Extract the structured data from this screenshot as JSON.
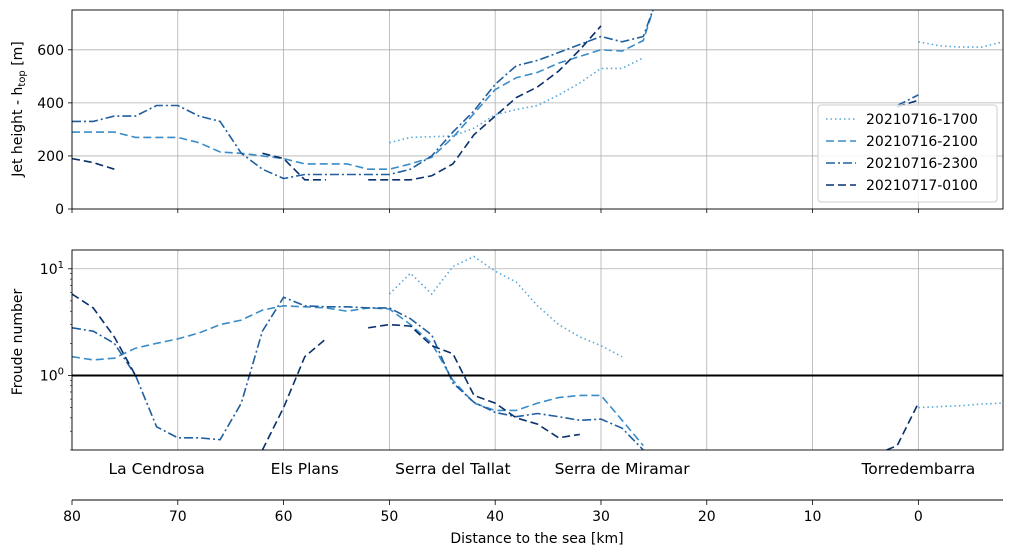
{
  "chart_data": [
    {
      "type": "line",
      "panel": "top",
      "ylabel_main": "Jet height - h",
      "ylabel_sub": "top",
      "ylabel_unit": " [m]",
      "xlim": [
        80,
        -8
      ],
      "ylim": [
        0,
        750
      ],
      "yticks": [
        0,
        200,
        400,
        600
      ],
      "grid": true,
      "legend_position": "right",
      "series": [
        {
          "name": "20210716-1700",
          "style": "dotted",
          "color": "#5aa8d8",
          "segments": [
            [
              [
                50,
                250
              ],
              [
                48,
                270
              ],
              [
                44,
                275
              ],
              [
                42,
                305
              ],
              [
                40,
                355
              ],
              [
                38,
                375
              ],
              [
                36,
                390
              ],
              [
                34,
                430
              ],
              [
                32,
                475
              ],
              [
                30,
                530
              ],
              [
                28,
                530
              ],
              [
                26,
                570
              ]
            ],
            [
              [
                0,
                630
              ],
              [
                -2,
                615
              ],
              [
                -4,
                610
              ],
              [
                -6,
                610
              ],
              [
                -8,
                630
              ]
            ]
          ]
        },
        {
          "name": "20210716-2100",
          "style": "dashed",
          "color": "#3a8cc8",
          "segments": [
            [
              [
                80,
                290
              ],
              [
                78,
                290
              ],
              [
                76,
                290
              ],
              [
                74,
                270
              ],
              [
                72,
                270
              ],
              [
                70,
                270
              ],
              [
                68,
                250
              ],
              [
                66,
                215
              ],
              [
                64,
                210
              ],
              [
                62,
                200
              ],
              [
                60,
                190
              ],
              [
                58,
                170
              ],
              [
                56,
                170
              ],
              [
                54,
                170
              ],
              [
                52,
                150
              ],
              [
                50,
                150
              ],
              [
                48,
                170
              ],
              [
                46,
                195
              ],
              [
                44,
                270
              ],
              [
                42,
                360
              ],
              [
                40,
                450
              ],
              [
                38,
                495
              ],
              [
                36,
                515
              ],
              [
                34,
                550
              ],
              [
                32,
                575
              ],
              [
                30,
                600
              ],
              [
                28,
                595
              ],
              [
                26,
                635
              ],
              [
                25,
                760
              ]
            ]
          ]
        },
        {
          "name": "20210716-2300",
          "style": "dashdot",
          "color": "#1f5f9f",
          "segments": [
            [
              [
                80,
                330
              ],
              [
                78,
                330
              ],
              [
                76,
                350
              ],
              [
                74,
                350
              ],
              [
                72,
                390
              ],
              [
                70,
                390
              ],
              [
                68,
                350
              ],
              [
                66,
                330
              ],
              [
                64,
                210
              ],
              [
                62,
                150
              ],
              [
                60,
                115
              ],
              [
                58,
                130
              ],
              [
                56,
                130
              ],
              [
                54,
                130
              ],
              [
                52,
                130
              ],
              [
                50,
                130
              ],
              [
                48,
                150
              ],
              [
                46,
                200
              ],
              [
                44,
                290
              ],
              [
                42,
                370
              ],
              [
                40,
                470
              ],
              [
                38,
                540
              ],
              [
                36,
                560
              ],
              [
                34,
                590
              ],
              [
                32,
                620
              ],
              [
                30,
                650
              ],
              [
                28,
                630
              ],
              [
                26,
                650
              ],
              [
                25,
                760
              ]
            ],
            [
              [
                2,
                390
              ],
              [
                0,
                430
              ]
            ]
          ]
        },
        {
          "name": "20210717-0100",
          "style": "dashed",
          "color": "#08306b",
          "segments": [
            [
              [
                80,
                190
              ],
              [
                78,
                175
              ],
              [
                76,
                150
              ]
            ],
            [
              [
                62,
                210
              ],
              [
                60,
                190
              ],
              [
                58,
                110
              ],
              [
                56,
                110
              ]
            ],
            [
              [
                52,
                110
              ],
              [
                50,
                110
              ],
              [
                48,
                110
              ],
              [
                46,
                125
              ],
              [
                44,
                170
              ],
              [
                42,
                280
              ],
              [
                40,
                350
              ],
              [
                38,
                420
              ],
              [
                36,
                460
              ],
              [
                34,
                520
              ],
              [
                32,
                600
              ],
              [
                30,
                690
              ]
            ],
            [
              [
                2,
                385
              ],
              [
                0,
                410
              ]
            ]
          ]
        }
      ]
    },
    {
      "type": "line",
      "panel": "bottom",
      "ylabel": "Froude number",
      "yscale": "log",
      "xlim": [
        80,
        -8
      ],
      "ylim": [
        0.2,
        15
      ],
      "reference_line": 1,
      "grid": true,
      "series": [
        {
          "name": "20210716-1700",
          "style": "dotted",
          "color": "#5aa8d8",
          "segments": [
            [
              [
                50,
                5.8
              ],
              [
                48,
                9.1
              ],
              [
                46,
                5.8
              ],
              [
                44,
                10.5
              ],
              [
                42,
                13.0
              ],
              [
                40,
                9.5
              ],
              [
                38,
                7.5
              ],
              [
                36,
                4.5
              ],
              [
                34,
                3.0
              ],
              [
                32,
                2.3
              ],
              [
                30,
                1.9
              ],
              [
                28,
                1.5
              ]
            ],
            [
              [
                0,
                0.5
              ],
              [
                -2,
                0.51
              ],
              [
                -4,
                0.52
              ],
              [
                -6,
                0.54
              ],
              [
                -8,
                0.55
              ]
            ]
          ]
        },
        {
          "name": "20210716-2100",
          "style": "dashed",
          "color": "#3a8cc8",
          "segments": [
            [
              [
                80,
                1.5
              ],
              [
                78,
                1.4
              ],
              [
                76,
                1.45
              ],
              [
                74,
                1.8
              ],
              [
                72,
                2.0
              ],
              [
                70,
                2.2
              ],
              [
                68,
                2.5
              ],
              [
                66,
                3.0
              ],
              [
                64,
                3.3
              ],
              [
                62,
                4.1
              ],
              [
                60,
                4.5
              ],
              [
                58,
                4.4
              ],
              [
                56,
                4.3
              ],
              [
                54,
                4.0
              ],
              [
                52,
                4.3
              ],
              [
                50,
                4.2
              ],
              [
                48,
                3.0
              ],
              [
                46,
                2.0
              ],
              [
                44,
                0.9
              ],
              [
                42,
                0.55
              ],
              [
                40,
                0.47
              ],
              [
                38,
                0.47
              ],
              [
                36,
                0.55
              ],
              [
                34,
                0.62
              ],
              [
                32,
                0.65
              ],
              [
                30,
                0.65
              ],
              [
                28,
                0.38
              ],
              [
                26,
                0.22
              ]
            ]
          ]
        },
        {
          "name": "20210716-2300",
          "style": "dashdot",
          "color": "#1f5f9f",
          "segments": [
            [
              [
                80,
                2.8
              ],
              [
                78,
                2.6
              ],
              [
                76,
                2.0
              ],
              [
                74,
                1.0
              ],
              [
                72,
                0.33
              ],
              [
                70,
                0.26
              ],
              [
                68,
                0.26
              ],
              [
                66,
                0.25
              ],
              [
                64,
                0.55
              ],
              [
                62,
                2.6
              ],
              [
                60,
                5.4
              ],
              [
                58,
                4.5
              ],
              [
                56,
                4.4
              ],
              [
                54,
                4.4
              ],
              [
                52,
                4.3
              ],
              [
                50,
                4.3
              ],
              [
                48,
                3.4
              ],
              [
                46,
                2.4
              ],
              [
                44,
                0.85
              ],
              [
                42,
                0.56
              ],
              [
                40,
                0.45
              ],
              [
                38,
                0.41
              ],
              [
                36,
                0.44
              ],
              [
                34,
                0.41
              ],
              [
                32,
                0.38
              ],
              [
                30,
                0.39
              ],
              [
                28,
                0.32
              ],
              [
                26,
                0.2
              ]
            ]
          ]
        },
        {
          "name": "20210717-0100",
          "style": "dashed",
          "color": "#08306b",
          "segments": [
            [
              [
                80,
                5.8
              ],
              [
                78,
                4.3
              ],
              [
                76,
                2.3
              ],
              [
                74,
                1.0
              ]
            ],
            [
              [
                62,
                0.2
              ],
              [
                60,
                0.5
              ],
              [
                58,
                1.5
              ],
              [
                56,
                2.2
              ]
            ],
            [
              [
                52,
                2.8
              ],
              [
                50,
                3.0
              ],
              [
                48,
                2.9
              ],
              [
                46,
                1.9
              ],
              [
                44,
                1.6
              ],
              [
                42,
                0.65
              ],
              [
                40,
                0.55
              ],
              [
                38,
                0.4
              ],
              [
                36,
                0.35
              ],
              [
                34,
                0.26
              ],
              [
                32,
                0.28
              ]
            ],
            [
              [
                3,
                0.2
              ],
              [
                2,
                0.22
              ],
              [
                0,
                0.55
              ]
            ]
          ]
        }
      ]
    },
    {
      "type": "axis",
      "panel": "distance_axis",
      "xlabel": "Distance to the sea [km]",
      "xlim": [
        80,
        -8
      ],
      "xticks": [
        80,
        70,
        60,
        50,
        40,
        30,
        20,
        10,
        0
      ]
    }
  ],
  "locations": [
    {
      "name": "La Cendrosa",
      "x": 72
    },
    {
      "name": "Els Plans",
      "x": 58
    },
    {
      "name": "Serra del Tallat",
      "x": 44
    },
    {
      "name": "Serra de Miramar",
      "x": 28
    },
    {
      "name": "Torredembarra",
      "x": 0
    }
  ],
  "froude_ticks": [
    {
      "base": "10",
      "exp": "1",
      "value": 10
    },
    {
      "base": "10",
      "exp": "0",
      "value": 1
    }
  ]
}
